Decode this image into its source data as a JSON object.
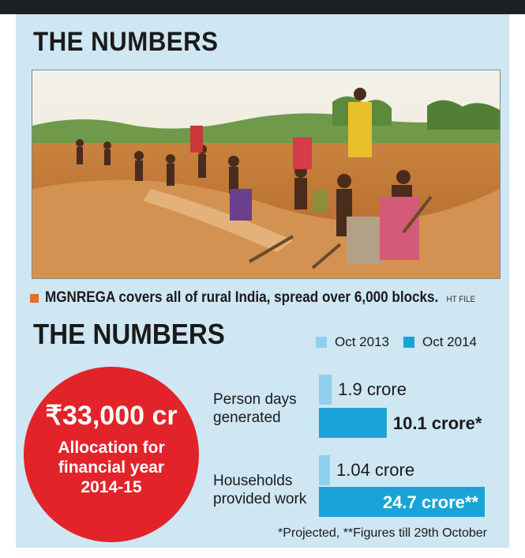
{
  "header": {
    "title": "THE NUMBERS"
  },
  "photo": {
    "caption": "MGNREGA covers all of rural India, spread over 6,000 blocks.",
    "credit": "HT FILE"
  },
  "panel": {
    "title": "THE NUMBERS"
  },
  "highlight": {
    "amount": "₹33,000 cr",
    "description": "Allocation for financial year 2014-15"
  },
  "footnote": "*Projected, **Figures till 29th October",
  "colors": {
    "oct_2013": "#8fd0ef",
    "oct_2014": "#1aa3d6",
    "highlight_circle": "#e3232a",
    "panel_bg": "#cfe6f3"
  },
  "chart_data": {
    "type": "bar",
    "orientation": "horizontal",
    "categories": [
      "Person days generated",
      "Households provided work"
    ],
    "series": [
      {
        "name": "Oct 2013",
        "values": [
          1.9,
          1.04
        ],
        "labels": [
          "1.9 crore",
          "1.04 crore"
        ]
      },
      {
        "name": "Oct 2014",
        "values": [
          10.1,
          24.7
        ],
        "labels": [
          "10.1 crore*",
          "24.7 crore**"
        ]
      }
    ],
    "legend": "top-right",
    "grid": false
  }
}
